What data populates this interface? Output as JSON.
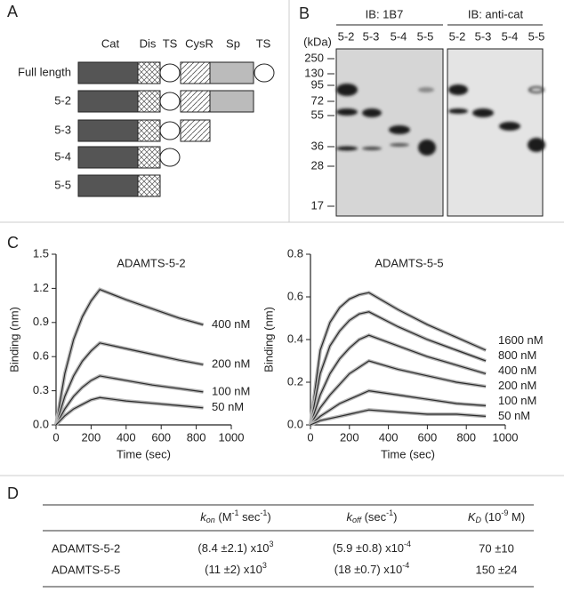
{
  "panel_labels": [
    "A",
    "B",
    "C",
    "D"
  ],
  "panel_a": {
    "headers": [
      "Cat",
      "Dis",
      "TS",
      "CysR",
      "Sp",
      "TS"
    ],
    "rows": [
      "Full length",
      "5-2",
      "5-3",
      "5-4",
      "5-5"
    ]
  },
  "panel_b": {
    "groups": [
      "IB: 1B7",
      "IB: anti-cat"
    ],
    "unit": "(kDa)",
    "markers": [
      250,
      130,
      95,
      72,
      55,
      36,
      28,
      17
    ],
    "lanes": [
      "5-2",
      "5-3",
      "5-4",
      "5-5"
    ]
  },
  "chart_data": [
    {
      "type": "line",
      "title": "ADAMTS-5-2",
      "x_label": "Time (sec)",
      "y_label": "Binding (nm)",
      "x": [
        0,
        50,
        100,
        150,
        200,
        250,
        400,
        550,
        700,
        840
      ],
      "xlim": [
        0,
        1000
      ],
      "xticks": [
        0,
        200,
        400,
        600,
        800,
        1000
      ],
      "ylim": [
        0,
        1.5
      ],
      "yticks": [
        {
          "value": 0,
          "label": "0.0"
        },
        0.3,
        0.6,
        0.9,
        1.2,
        1.5
      ],
      "color": "#2a2a2a",
      "series": [
        {
          "name": "400 nM",
          "values": [
            0,
            0.45,
            0.75,
            0.95,
            1.09,
            1.19,
            1.1,
            1.02,
            0.94,
            0.88
          ]
        },
        {
          "name": "200 nM",
          "values": [
            0,
            0.25,
            0.43,
            0.56,
            0.65,
            0.72,
            0.67,
            0.62,
            0.57,
            0.53
          ]
        },
        {
          "name": "100 nM",
          "values": [
            0,
            0.14,
            0.25,
            0.33,
            0.39,
            0.43,
            0.39,
            0.35,
            0.32,
            0.29
          ]
        },
        {
          "name": "50 nM",
          "values": [
            0,
            0.08,
            0.14,
            0.18,
            0.22,
            0.24,
            0.21,
            0.19,
            0.17,
            0.15
          ]
        }
      ]
    },
    {
      "type": "line",
      "title": "ADAMTS-5-5",
      "x_label": "Time (sec)",
      "y_label": "Binding (nm)",
      "x": [
        0,
        50,
        100,
        150,
        200,
        250,
        300,
        450,
        600,
        750,
        900
      ],
      "xlim": [
        0,
        1000
      ],
      "xticks": [
        0,
        200,
        400,
        600,
        800,
        1000
      ],
      "ylim": [
        0,
        0.8
      ],
      "yticks": [
        {
          "value": 0,
          "label": "0.0"
        },
        0.2,
        0.4,
        0.6,
        0.8
      ],
      "color": "#2a2a2a",
      "series": [
        {
          "name": "1600 nM",
          "values": [
            0,
            0.35,
            0.48,
            0.55,
            0.59,
            0.61,
            0.62,
            0.54,
            0.47,
            0.41,
            0.35
          ]
        },
        {
          "name": "800 nM",
          "values": [
            0,
            0.24,
            0.37,
            0.44,
            0.49,
            0.52,
            0.53,
            0.46,
            0.4,
            0.35,
            0.3
          ]
        },
        {
          "name": "400 nM",
          "values": [
            0,
            0.14,
            0.24,
            0.31,
            0.36,
            0.4,
            0.42,
            0.37,
            0.32,
            0.28,
            0.24
          ]
        },
        {
          "name": "200 nM",
          "values": [
            0,
            0.08,
            0.14,
            0.19,
            0.24,
            0.27,
            0.3,
            0.26,
            0.23,
            0.2,
            0.18
          ]
        },
        {
          "name": "100 nM",
          "values": [
            0,
            0.04,
            0.07,
            0.1,
            0.12,
            0.14,
            0.16,
            0.14,
            0.12,
            0.1,
            0.09
          ]
        },
        {
          "name": "50 nM",
          "values": [
            0,
            0.02,
            0.03,
            0.04,
            0.05,
            0.06,
            0.07,
            0.06,
            0.05,
            0.05,
            0.04
          ]
        }
      ]
    }
  ],
  "table": {
    "header": [
      [
        "k",
        "on",
        " (M",
        "-1",
        " sec",
        "-1",
        ")"
      ],
      [
        "k",
        "off",
        " (sec",
        "-1",
        ")"
      ],
      [
        "K",
        "D",
        " (10",
        "-9",
        " M)"
      ]
    ],
    "rows": [
      {
        "name": "ADAMTS-5-2",
        "kon": [
          "(8.4 ±2.1) x10",
          "3"
        ],
        "koff": [
          "(5.9 ±0.8) x10",
          "-4"
        ],
        "kd": "70 ±10"
      },
      {
        "name": "ADAMTS-5-5",
        "kon": [
          "(11 ±2) x10",
          "3"
        ],
        "koff": [
          "(18 ±0.7) x10",
          "-4"
        ],
        "kd": "150 ±24"
      }
    ]
  }
}
